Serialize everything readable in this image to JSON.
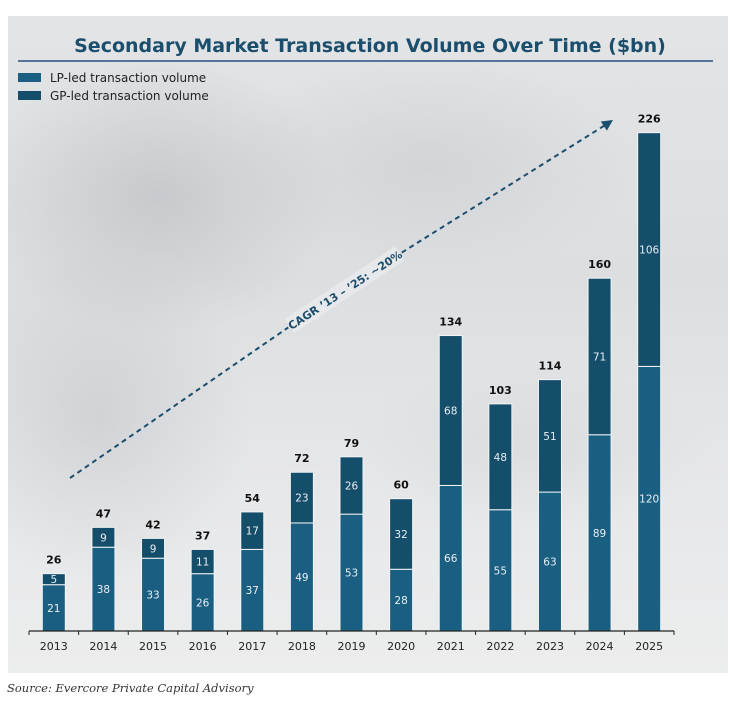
{
  "chart_data": {
    "type": "bar",
    "stacked": true,
    "title": "Secondary Market Transaction Volume Over Time ($bn)",
    "xlabel": "",
    "ylabel": "",
    "categories": [
      "2013",
      "2014",
      "2015",
      "2016",
      "2017",
      "2018",
      "2019",
      "2020",
      "2021",
      "2022",
      "2023",
      "2024",
      "2025"
    ],
    "series": [
      {
        "name": "LP-led transaction volume",
        "color": "#1a5f82",
        "values": [
          21,
          38,
          33,
          26,
          37,
          49,
          53,
          28,
          66,
          55,
          63,
          89,
          120
        ]
      },
      {
        "name": "GP-led transaction volume",
        "color": "#154e6a",
        "values": [
          5,
          9,
          9,
          11,
          17,
          23,
          26,
          32,
          68,
          48,
          51,
          71,
          106
        ]
      }
    ],
    "totals": [
      26,
      47,
      42,
      37,
      54,
      72,
      79,
      60,
      134,
      103,
      114,
      160,
      226
    ],
    "ylim": [
      0,
      226
    ],
    "grid": false,
    "legend": "top-left",
    "annotation": {
      "text": "CAGR ’13 – ’25: ~20%",
      "type": "dashed-arrow",
      "from_category": "2013",
      "to_category": "2024"
    }
  },
  "source": "Source: Evercore Private Capital Advisory",
  "colors": {
    "title": "#1b4e6d",
    "title_rule": "#2a4f7c",
    "lp": "#1a5f82",
    "gp": "#154e6a"
  }
}
